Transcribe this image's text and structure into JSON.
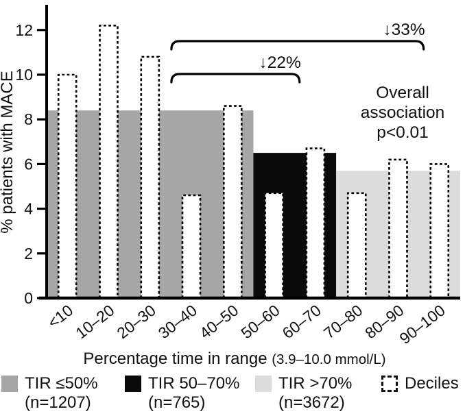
{
  "chart_data": {
    "type": "bar",
    "title": "",
    "ylabel": "% patients with MACE",
    "xlabel": "Percentage time in range",
    "xlabel_unit": "(3.9–10.0 mmol/L)",
    "ylim": [
      0,
      12.4
    ],
    "yticks": [
      0,
      2,
      4,
      6,
      8,
      10,
      12
    ],
    "grid": false,
    "legend_position": "bottom",
    "categories": [
      "<10",
      "10–20",
      "20–30",
      "30–40",
      "40–50",
      "50–60",
      "60–70",
      "70–80",
      "80–90",
      "90–100"
    ],
    "series": [
      {
        "name": "Deciles",
        "style": "dashed-outline-bar",
        "values": [
          10.0,
          12.2,
          10.8,
          4.6,
          8.6,
          4.7,
          6.7,
          4.7,
          6.2,
          6.0
        ]
      }
    ],
    "group_bars": [
      {
        "name": "TIR ≤50%",
        "n_label": "(n=1207)",
        "color": "#a6a6a6",
        "from_index": 0,
        "to_index": 4,
        "value": 8.4
      },
      {
        "name": "TIR 50–70%",
        "n_label": "(n=765)",
        "color": "#0a0a0a",
        "from_index": 5,
        "to_index": 6,
        "value": 6.5
      },
      {
        "name": "TIR >70%",
        "n_label": "(n=3672)",
        "color": "#dcdcdc",
        "from_index": 7,
        "to_index": 9,
        "value": 5.7
      }
    ],
    "annotations": {
      "brackets": [
        {
          "label": "↓22%",
          "from_index": 3,
          "to_index": 6,
          "level": 1
        },
        {
          "label": "↓33%",
          "from_index": 3,
          "to_index": 9,
          "level": 2
        }
      ],
      "note_lines": [
        "Overall",
        "association",
        "p<0.01"
      ]
    },
    "legend": [
      {
        "swatch": "solid",
        "color": "#a6a6a6",
        "label": "TIR ≤50%",
        "sub": "(n=1207)"
      },
      {
        "swatch": "solid",
        "color": "#0a0a0a",
        "label": "TIR 50–70%",
        "sub": "(n=765)"
      },
      {
        "swatch": "solid",
        "color": "#dcdcdc",
        "label": "TIR >70%",
        "sub": "(n=3672)"
      },
      {
        "swatch": "dashed",
        "color": "#ffffff",
        "label": "Deciles",
        "sub": ""
      }
    ]
  }
}
